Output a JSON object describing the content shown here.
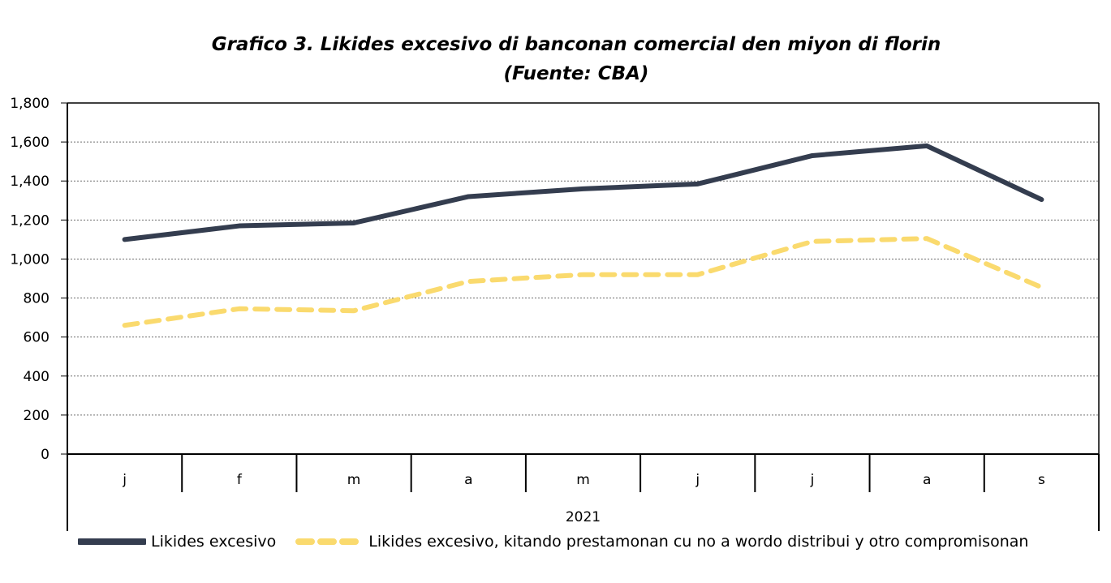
{
  "title_line1": "Grafico 3. Likides excesivo di banconan comercial den miyon di florin",
  "title_line2": "(Fuente: CBA)",
  "colors": {
    "series1": "#343d4f",
    "series2": "#fada6e",
    "grid": "#6e6e6e",
    "axis": "#000000"
  },
  "chart_data": {
    "type": "line",
    "title": "Grafico 3. Likides excesivo di banconan comercial den miyon di florin",
    "subtitle": "(Fuente: CBA)",
    "categories": [
      "j",
      "f",
      "m",
      "a",
      "m",
      "j",
      "j",
      "a",
      "s"
    ],
    "category_group": "2021",
    "ylim": [
      0,
      1800
    ],
    "yticks": [
      "0",
      "200",
      "400",
      "600",
      "800",
      "1,000",
      "1,200",
      "1,400",
      "1,600",
      "1,800"
    ],
    "grid": "horizontal dotted",
    "legend_position": "bottom",
    "series": [
      {
        "name": "Likides excesivo",
        "style": "solid",
        "values": [
          1100,
          1170,
          1185,
          1320,
          1360,
          1385,
          1530,
          1580,
          1305
        ]
      },
      {
        "name": "Likides excesivo, kitando prestamonan cu no a wordo distribui y otro compromisonan",
        "style": "dashed",
        "values": [
          660,
          745,
          735,
          885,
          920,
          920,
          1090,
          1105,
          855
        ]
      }
    ]
  }
}
